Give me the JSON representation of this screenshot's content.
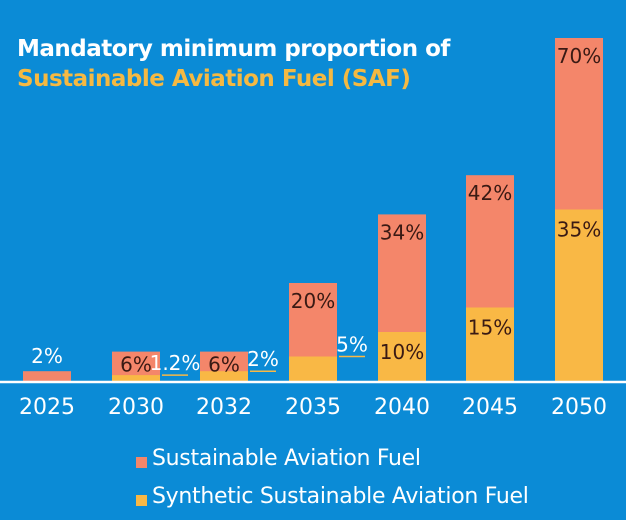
{
  "colors": {
    "background": "#0b8bd6",
    "saf": "#f4866a",
    "synthetic": "#f9b845",
    "axis": "#ffffff",
    "label_dark": "#3a1a14",
    "label_light": "#ffffff",
    "leader": "#f9b845"
  },
  "chart_data": {
    "type": "bar",
    "stacked": "overlay",
    "title": "Mandatory minimum proportion of Sustainable Aviation Fuel (SAF)",
    "title_line1": "Mandatory minimum proportion of",
    "title_line2": "Sustainable Aviation Fuel (SAF)",
    "xlabel": "",
    "ylabel": "",
    "ylim": [
      0,
      70
    ],
    "grid": false,
    "legend_position": "bottom",
    "categories": [
      "2025",
      "2030",
      "2032",
      "2035",
      "2040",
      "2045",
      "2050"
    ],
    "series": [
      {
        "name": "Sustainable Aviation Fuel",
        "values": [
          2,
          6,
          6,
          20,
          34,
          42,
          70
        ],
        "labels": [
          "2%",
          "6%",
          "6%",
          "20%",
          "34%",
          "42%",
          "70%"
        ]
      },
      {
        "name": "Synthetic Sustainable Aviation Fuel",
        "values": [
          0,
          1.2,
          2,
          5,
          10,
          15,
          35
        ],
        "labels": [
          "",
          "1.2%",
          "2%",
          "5%",
          "10%",
          "15%",
          "35%"
        ]
      }
    ]
  },
  "legend": [
    {
      "label": "Sustainable Aviation Fuel"
    },
    {
      "label": "Synthetic Sustainable Aviation Fuel"
    }
  ]
}
